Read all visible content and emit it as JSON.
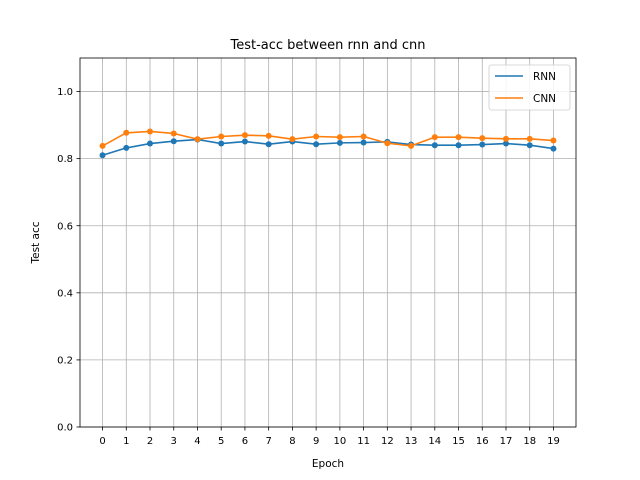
{
  "chart_data": {
    "type": "line",
    "title": "Test-acc between rnn and cnn",
    "xlabel": "Epoch",
    "ylabel": "Test acc",
    "x": [
      0,
      1,
      2,
      3,
      4,
      5,
      6,
      7,
      8,
      9,
      10,
      11,
      12,
      13,
      14,
      15,
      16,
      17,
      18,
      19
    ],
    "xlim": [
      -0.95,
      19.95
    ],
    "ylim": [
      0.0,
      1.1
    ],
    "yticks": [
      0.0,
      0.2,
      0.4,
      0.6,
      0.8,
      1.0
    ],
    "ytick_labels": [
      "0.0",
      "0.2",
      "0.4",
      "0.6",
      "0.8",
      "1.0"
    ],
    "grid": true,
    "legend_position": "top-right",
    "series": [
      {
        "name": "RNN",
        "color": "#1f77b4",
        "values": [
          0.81,
          0.832,
          0.845,
          0.852,
          0.857,
          0.845,
          0.851,
          0.843,
          0.851,
          0.843,
          0.847,
          0.848,
          0.85,
          0.842,
          0.84,
          0.84,
          0.842,
          0.845,
          0.84,
          0.83
        ]
      },
      {
        "name": "CNN",
        "color": "#ff7f0e",
        "values": [
          0.838,
          0.877,
          0.881,
          0.875,
          0.858,
          0.866,
          0.87,
          0.868,
          0.858,
          0.866,
          0.864,
          0.866,
          0.846,
          0.838,
          0.864,
          0.864,
          0.861,
          0.859,
          0.859,
          0.854
        ]
      }
    ]
  }
}
